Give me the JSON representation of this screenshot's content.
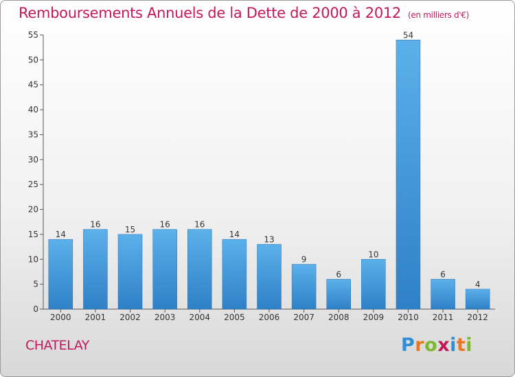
{
  "title": "Remboursements Annuels de la Dette de 2000 à 2012",
  "subtitle": "(en milliers d'€)",
  "commune": "CHATELAY",
  "logo": {
    "letters": [
      "P",
      "r",
      "o",
      "x",
      "i",
      "t",
      "i"
    ],
    "colors": [
      "#2e8fd6",
      "#e87722",
      "#7cb82f",
      "#c2185b",
      "#2e8fd6",
      "#e87722",
      "#7cb82f"
    ]
  },
  "colors": {
    "bar": "#3a8fd4",
    "bar_light": "#5cb0ea",
    "title": "#c2185b",
    "grid": "#cfcfcf"
  },
  "chart_data": {
    "type": "bar",
    "title": "Remboursements Annuels de la Dette de 2000 à 2012",
    "subtitle": "(en milliers d'€)",
    "categories": [
      "2000",
      "2001",
      "2002",
      "2003",
      "2004",
      "2005",
      "2006",
      "2007",
      "2008",
      "2009",
      "2010",
      "2011",
      "2012"
    ],
    "values": [
      14,
      16,
      15,
      16,
      16,
      14,
      13,
      9,
      6,
      10,
      54,
      6,
      4
    ],
    "ylim": [
      0,
      55
    ],
    "yticks": [
      0,
      5,
      10,
      15,
      20,
      25,
      30,
      35,
      40,
      45,
      50,
      55
    ],
    "grid": false,
    "legend": "none"
  }
}
